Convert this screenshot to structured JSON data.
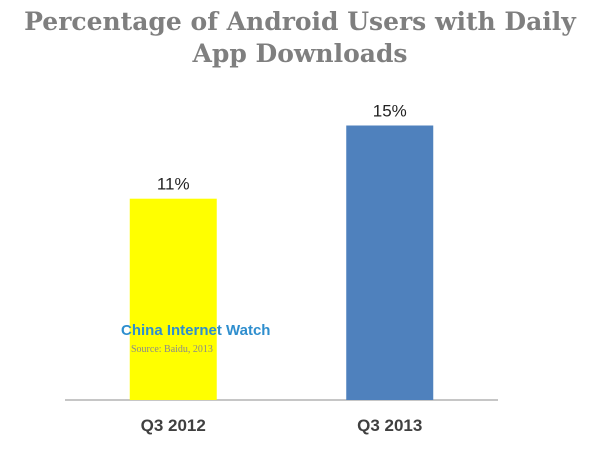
{
  "chart_data": {
    "type": "bar",
    "title": "Percentage of Android Users with Daily App Downloads",
    "categories": [
      "Q3 2012",
      "Q3 2013"
    ],
    "values": [
      11,
      15
    ],
    "data_labels": [
      "11%",
      "15%"
    ],
    "bar_colors": [
      "#ffff00",
      "#4f81bd"
    ],
    "xlabel": "",
    "ylabel": "",
    "ylim": [
      0,
      20
    ],
    "grid": false,
    "legend": "none"
  },
  "watermark": {
    "brand": "China Internet Watch",
    "source": "Source: Baidu, 2013"
  }
}
